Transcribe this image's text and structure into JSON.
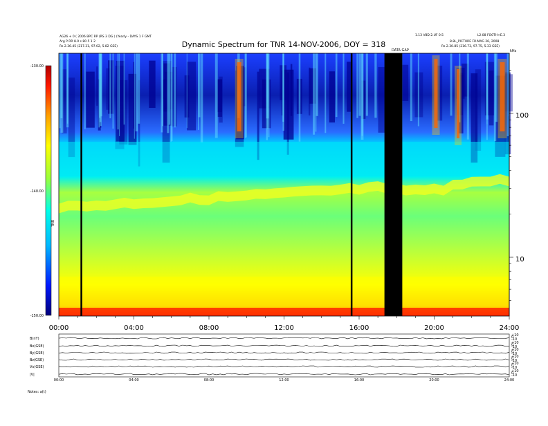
{
  "chart_data": {
    "type": "heatmap",
    "title": "Dynamic Spectrum for TNR 14-NOV-2006, DOY = 318",
    "header_left": [
      "AG26 + 0 ( 2006 BPC RP (RS 3 DG ) (Yearly - DAYS 1 F GMT",
      "Arg P RR 8.0 s 80 5 1 2",
      "Rs    2.36.45 (217.31, 97.02, 5.82 GSE)"
    ],
    "header_right": [
      "1.13 V8D 2.UF 0.5",
      "L2.08 FO0TH+E.3",
      "8.8L_PICTURE FR.MAG 26, 2008",
      "Rs    2.30.85 (216.73, 97.75, 5.33 GSE)"
    ],
    "gap_label": "DATA GAP",
    "yunit_label": "kHz",
    "x_ticks": [
      "00:00",
      "04:00",
      "08:00",
      "12:00",
      "16:00",
      "20:00",
      "24:00"
    ],
    "y_ticks_right": [
      "100",
      "10"
    ],
    "colorbar": {
      "ticks": [
        "-130.00",
        "-140.00",
        "-150.00"
      ],
      "label": "TNR",
      "range": [
        -150,
        -130
      ],
      "colors": [
        "#00007a",
        "#0018ff",
        "#00b8ff",
        "#00ffe8",
        "#9bff3a",
        "#ffff00",
        "#ffa000",
        "#ff1800",
        "#b00000"
      ]
    },
    "data_gaps_hours": [
      [
        17.35,
        18.3
      ]
    ],
    "vertical_markers_hours": [
      1.2,
      15.6
    ],
    "panel_x_ticks": [
      "00:00",
      "04:00",
      "08:00",
      "12:00",
      "16:00",
      "20:00",
      "24:00"
    ],
    "panel_labels": [
      "B(nT)",
      "Bx(GSE)",
      "By(GSE)",
      "Bz(GSE)",
      "Vx(GSE)",
      "|V|"
    ],
    "panel_right_ticks": [
      "+10",
      "0",
      "-10"
    ],
    "footer": "Notes:  a(t)"
  }
}
